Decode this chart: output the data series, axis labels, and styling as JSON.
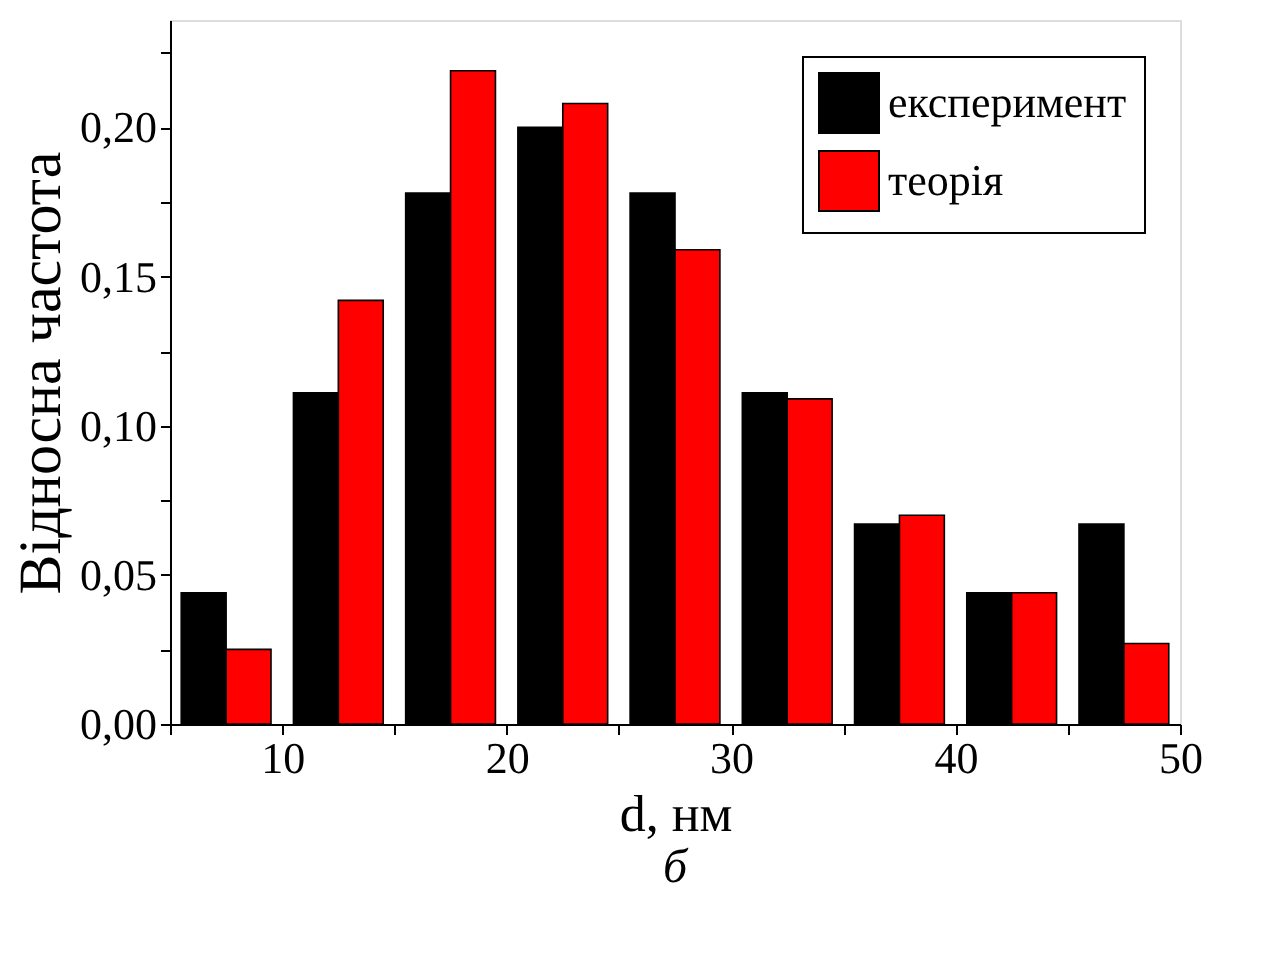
{
  "chart_data": {
    "type": "bar",
    "xlabel": "d, нм",
    "ylabel": "Відносна частота",
    "annotations": [
      "б"
    ],
    "x": [
      7.5,
      12.5,
      17.5,
      22.5,
      27.5,
      32.5,
      37.5,
      42.5,
      47.5
    ],
    "series": [
      {
        "name": "експеримент",
        "color": "#000000",
        "values": [
          0.044,
          0.111,
          0.178,
          0.2,
          0.178,
          0.111,
          0.067,
          0.044,
          0.067
        ]
      },
      {
        "name": "теорія",
        "color": "#ff0000",
        "values": [
          0.025,
          0.142,
          0.219,
          0.208,
          0.159,
          0.109,
          0.07,
          0.044,
          0.027
        ]
      }
    ],
    "xlim": [
      5,
      50
    ],
    "xticks": [
      {
        "value": 5,
        "label": null
      },
      10,
      {
        "value": 15,
        "label": null
      },
      20,
      {
        "value": 25,
        "label": null
      },
      30,
      {
        "value": 35,
        "label": null
      },
      40,
      {
        "value": 45,
        "label": null
      },
      50
    ],
    "ylim": [
      0,
      0.236
    ],
    "yticks": [
      {
        "value": 0,
        "label": "0,00"
      },
      {
        "value": 0.025,
        "label": null
      },
      {
        "value": 0.05,
        "label": "0,05"
      },
      {
        "value": 0.075,
        "label": null
      },
      {
        "value": 0.1,
        "label": "0,10"
      },
      {
        "value": 0.125,
        "label": null
      },
      {
        "value": 0.15,
        "label": "0,15"
      },
      {
        "value": 0.175,
        "label": null
      },
      {
        "value": 0.2,
        "label": "0,20"
      },
      {
        "value": 0.225,
        "label": null
      }
    ],
    "grid": false,
    "legend": "top right"
  }
}
